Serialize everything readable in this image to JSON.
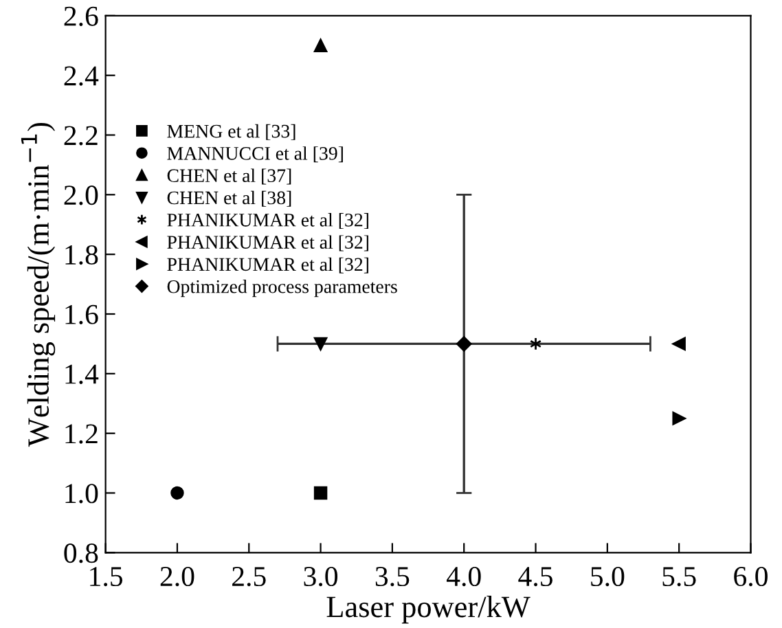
{
  "chart_data": {
    "type": "scatter",
    "xlabel": "Laser power/kW",
    "ylabel": "Welding speed/(m·min$^{−1}$)",
    "xlim": [
      1.5,
      6.0
    ],
    "xticks": [
      {
        "value": 1.5,
        "label": "1.5"
      },
      {
        "value": 2.0,
        "label": "2.0"
      },
      {
        "value": 2.5,
        "label": "2.5"
      },
      {
        "value": 3.0,
        "label": "3.0"
      },
      {
        "value": 3.5,
        "label": "3.5"
      },
      {
        "value": 4.0,
        "label": "4.0"
      },
      {
        "value": 4.5,
        "label": "4.5"
      },
      {
        "value": 5.0,
        "label": "5.0"
      },
      {
        "value": 5.5,
        "label": "5.5"
      },
      {
        "value": 6.0,
        "label": "6.0"
      }
    ],
    "ylim": [
      0.8,
      2.6
    ],
    "yticks": [
      {
        "value": 0.8,
        "label": "0.8"
      },
      {
        "value": 1.0,
        "label": "1.0"
      },
      {
        "value": 1.2,
        "label": "1.2"
      },
      {
        "value": 1.4,
        "label": "1.4"
      },
      {
        "value": 1.6,
        "label": "1.6"
      },
      {
        "value": 1.8,
        "label": "1.8"
      },
      {
        "value": 2.0,
        "label": "2.0"
      },
      {
        "value": 2.2,
        "label": "2.2"
      },
      {
        "value": 2.4,
        "label": "2.4"
      },
      {
        "value": 2.6,
        "label": "2.6"
      }
    ],
    "grid": false,
    "legend": "top left",
    "series": [
      {
        "name": "MENG et al [33]",
        "color": "#000000",
        "marker": "square",
        "x": [
          3.0
        ],
        "values": [
          1.0
        ]
      },
      {
        "name": "MANNUCCI et al [39]",
        "color": "#000000",
        "marker": "circle",
        "x": [
          2.0
        ],
        "values": [
          1.0
        ]
      },
      {
        "name": "CHEN et al [37]",
        "color": "#000000",
        "marker": "triangle",
        "x": [
          3.0
        ],
        "values": [
          2.5
        ]
      },
      {
        "name": "CHEN et al [38]",
        "color": "#000000",
        "marker": "triangle_down",
        "x": [
          3.0
        ],
        "values": [
          1.5
        ]
      },
      {
        "name": "PHANIKUMAR et al [32]",
        "color": "#000000",
        "marker": "cross",
        "x": [
          4.5
        ],
        "values": [
          1.5
        ]
      },
      {
        "name": "PHANIKUMAR et al [32]",
        "color": "#000000",
        "marker": "triangle_left",
        "x": [
          5.5
        ],
        "values": [
          1.5
        ]
      },
      {
        "name": "PHANIKUMAR et al [32]",
        "color": "#000000",
        "marker": "triangle_right",
        "x": [
          5.5
        ],
        "values": [
          1.25
        ]
      },
      {
        "name": "Optimized process parameters",
        "color": "#000000",
        "marker": "diamond",
        "x": [
          4.0
        ],
        "values": [
          1.5
        ],
        "errors": [
          [
            1.0,
            2.0
          ]
        ],
        "xerrors": [
          [
            2.7,
            5.3
          ]
        ]
      }
    ]
  }
}
